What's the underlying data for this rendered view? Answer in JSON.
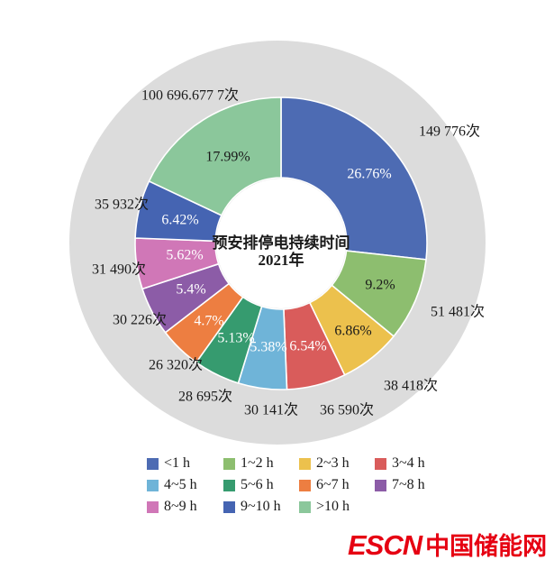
{
  "figure": {
    "background": "#ffffff"
  },
  "chart_data": {
    "type": "pie",
    "variant": "donut-with-outer-ring",
    "title": "预安排停电持续时间",
    "subtitle": "2021年",
    "direction": "clockwise",
    "start_angle_deg": 0,
    "legend_position": "bottom",
    "outer_ring_color": "#dcdcdc",
    "slice_border_color": "#ffffff",
    "unit": "次",
    "series": [
      {
        "name": "<1 h",
        "count_label": "149 776次",
        "pct": 26.76,
        "pct_label": "26.76%",
        "color": "#4d6bb3",
        "pct_label_color": "#ffffff"
      },
      {
        "name": "1~2 h",
        "count_label": "51 481次",
        "pct": 9.2,
        "pct_label": "9.2%",
        "color": "#8dbe6f",
        "pct_label_color": "#1a1a1a"
      },
      {
        "name": "2~3 h",
        "count_label": "38 418次",
        "pct": 6.86,
        "pct_label": "6.86%",
        "color": "#ecc14d",
        "pct_label_color": "#1a1a1a"
      },
      {
        "name": "3~4 h",
        "count_label": "36 590次",
        "pct": 6.54,
        "pct_label": "6.54%",
        "color": "#d95c5b",
        "pct_label_color": "#ffffff"
      },
      {
        "name": "4~5 h",
        "count_label": "30 141次",
        "pct": 5.38,
        "pct_label": "5.38%",
        "color": "#6fb4d8",
        "pct_label_color": "#ffffff"
      },
      {
        "name": "5~6 h",
        "count_label": "28 695次",
        "pct": 5.13,
        "pct_label": "5.13%",
        "color": "#369b6f",
        "pct_label_color": "#ffffff"
      },
      {
        "name": "6~7 h",
        "count_label": "26 320次",
        "pct": 4.7,
        "pct_label": "4.7%",
        "color": "#ed7e41",
        "pct_label_color": "#ffffff"
      },
      {
        "name": "7~8 h",
        "count_label": "30 226次",
        "pct": 5.4,
        "pct_label": "5.4%",
        "color": "#8c5ca7",
        "pct_label_color": "#ffffff"
      },
      {
        "name": "8~9 h",
        "count_label": "31 490次",
        "pct": 5.62,
        "pct_label": "5.62%",
        "color": "#d077b7",
        "pct_label_color": "#ffffff"
      },
      {
        "name": "9~10 h",
        "count_label": "35 932次",
        "pct": 6.42,
        "pct_label": "6.42%",
        "color": "#4564b2",
        "pct_label_color": "#ffffff"
      },
      {
        "name": ">10 h",
        "count_label": "100 696.677 7次",
        "pct": 17.99,
        "pct_label": "17.99%",
        "color": "#8bc79b",
        "pct_label_color": "#1a1a1a"
      }
    ]
  },
  "logo": {
    "latin": "ESCN",
    "cjk": "中国储能网",
    "color": "#e60012"
  }
}
